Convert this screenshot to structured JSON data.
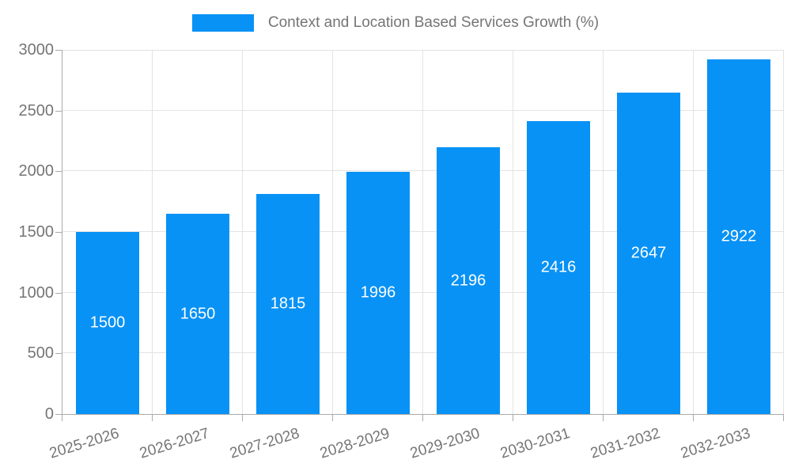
{
  "chart_data": {
    "type": "bar",
    "title": "Context and Location Based Services Growth (%)",
    "categories": [
      "2025-2026",
      "2026-2027",
      "2027-2028",
      "2028-2029",
      "2029-2030",
      "2030-2031",
      "2031-2032",
      "2032-2033"
    ],
    "values": [
      1500,
      1650,
      1815,
      1996,
      2196,
      2416,
      2647,
      2922
    ],
    "xlabel": "",
    "ylabel": "",
    "ylim": [
      0,
      3000
    ],
    "yticks": [
      0,
      500,
      1000,
      1500,
      2000,
      2500,
      3000
    ],
    "grid": true,
    "legend_position": "top",
    "value_labels": "centered-inside-bars",
    "colors": {
      "bar": "#0892f5",
      "value_label": "#ffffff",
      "axis_line": "#aaaaaa",
      "grid_line": "#e3e3e3",
      "tick_label": "#757575",
      "legend_text": "#757575",
      "background": "#ffffff"
    }
  }
}
